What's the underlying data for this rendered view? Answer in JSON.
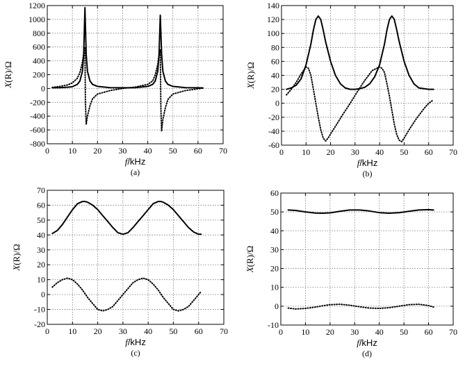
{
  "chart_data": [
    {
      "panel": "(a)",
      "type": "line",
      "xlabel_var": "f",
      "xlabel_unit": "/kHz",
      "ylabel_var": "X",
      "ylabel_unit": "(R)/Ω",
      "caption": "(a)",
      "xlim": [
        0,
        70
      ],
      "ylim": [
        -800,
        1200
      ],
      "xticks": [
        0,
        10,
        20,
        30,
        40,
        50,
        60,
        70
      ],
      "yticks": [
        -800,
        -600,
        -400,
        -200,
        0,
        200,
        400,
        600,
        800,
        1000,
        1200
      ],
      "grid": true,
      "series": [
        {
          "style": "solid",
          "x": [
            2,
            5,
            8,
            10,
            12,
            13,
            14,
            14.5,
            15,
            15.5,
            16,
            17,
            18,
            20,
            25,
            30,
            35,
            40,
            42,
            43,
            44,
            44.5,
            45,
            45.5,
            46,
            47,
            48,
            50,
            55,
            60,
            62
          ],
          "y": [
            10,
            12,
            18,
            25,
            60,
            110,
            250,
            500,
            1170,
            500,
            250,
            110,
            60,
            30,
            12,
            10,
            12,
            30,
            60,
            110,
            250,
            500,
            1060,
            500,
            250,
            110,
            60,
            30,
            12,
            10,
            8
          ]
        },
        {
          "style": "dotted",
          "x": [
            2,
            5,
            8,
            10,
            12,
            13,
            14,
            14.5,
            15,
            15.2,
            15.5,
            16,
            17,
            18,
            20,
            25,
            30,
            35,
            40,
            42,
            43,
            44,
            44.5,
            45,
            45.2,
            45.5,
            46,
            47,
            48,
            50,
            55,
            60,
            62
          ],
          "y": [
            15,
            30,
            50,
            80,
            150,
            230,
            380,
            500,
            600,
            -200,
            -520,
            -400,
            -250,
            -150,
            -80,
            -30,
            0,
            20,
            60,
            110,
            200,
            350,
            480,
            560,
            -250,
            -620,
            -450,
            -280,
            -160,
            -80,
            -30,
            -5,
            5
          ]
        }
      ]
    },
    {
      "panel": "(b)",
      "type": "line",
      "xlabel_var": "f",
      "xlabel_unit": "/kHz",
      "ylabel_var": "X",
      "ylabel_unit": "(R)/Ω",
      "caption": "(b)",
      "xlim": [
        0,
        70
      ],
      "ylim": [
        -60,
        140
      ],
      "xticks": [
        0,
        10,
        20,
        30,
        40,
        50,
        60,
        70
      ],
      "yticks": [
        -60,
        -40,
        -20,
        0,
        20,
        40,
        60,
        80,
        100,
        120,
        140
      ],
      "grid": true,
      "series": [
        {
          "style": "solid",
          "x": [
            2,
            4,
            6,
            8,
            10,
            12,
            13,
            14,
            15,
            16,
            17,
            18,
            20,
            22,
            24,
            26,
            28,
            30,
            32,
            34,
            36,
            38,
            40,
            42,
            43,
            44,
            45,
            46,
            47,
            48,
            50,
            52,
            54,
            56,
            58,
            60,
            62
          ],
          "y": [
            20,
            22,
            26,
            35,
            55,
            85,
            105,
            120,
            125,
            120,
            105,
            88,
            60,
            40,
            28,
            22,
            20,
            20,
            21,
            23,
            28,
            38,
            55,
            85,
            105,
            120,
            125,
            120,
            105,
            88,
            60,
            40,
            28,
            22,
            21,
            20,
            20
          ]
        },
        {
          "style": "dotted",
          "x": [
            2,
            4,
            6,
            8,
            10,
            11,
            12,
            13,
            14,
            15,
            16,
            17,
            18,
            19,
            20,
            22,
            25,
            28,
            31,
            34,
            37,
            40,
            41,
            42,
            43,
            44,
            45,
            46,
            47,
            48,
            49,
            50,
            52,
            55,
            58,
            60,
            62
          ],
          "y": [
            12,
            20,
            30,
            42,
            52,
            50,
            40,
            20,
            0,
            -20,
            -38,
            -50,
            -54,
            -50,
            -44,
            -33,
            -16,
            0,
            17,
            33,
            47,
            52,
            50,
            44,
            28,
            10,
            -10,
            -30,
            -45,
            -53,
            -55,
            -50,
            -38,
            -22,
            -8,
            0,
            5
          ]
        }
      ]
    },
    {
      "panel": "(c)",
      "type": "line",
      "xlabel_var": "f",
      "xlabel_unit": "/kHz",
      "ylabel_var": "X",
      "ylabel_unit": "(R)/Ω",
      "caption": "(c)",
      "xlim": [
        0,
        70
      ],
      "ylim": [
        -20,
        70
      ],
      "xticks": [
        0,
        10,
        20,
        30,
        40,
        50,
        60,
        70
      ],
      "yticks": [
        -20,
        -10,
        0,
        10,
        20,
        30,
        40,
        50,
        60,
        70
      ],
      "grid": true,
      "series": [
        {
          "style": "solid",
          "x": [
            2,
            4,
            6,
            8,
            10,
            12,
            14,
            15,
            16,
            18,
            20,
            22,
            24,
            26,
            28,
            30,
            32,
            34,
            36,
            38,
            40,
            42,
            44,
            45,
            46,
            48,
            50,
            52,
            54,
            56,
            58,
            60,
            61
          ],
          "y": [
            41,
            43,
            47,
            52,
            57,
            61,
            62.5,
            62.5,
            62,
            60,
            57,
            53,
            49,
            45,
            41.5,
            40.5,
            41.5,
            45,
            49,
            53,
            57,
            61,
            62.5,
            62.5,
            62,
            60,
            57,
            53,
            49,
            45,
            42,
            40.5,
            40.5
          ]
        },
        {
          "style": "dotted",
          "x": [
            2,
            4,
            6,
            8,
            10,
            12,
            14,
            16,
            18,
            20,
            22,
            24,
            26,
            28,
            30,
            32,
            34,
            36,
            38,
            40,
            42,
            44,
            46,
            48,
            50,
            52,
            54,
            56,
            58,
            60,
            61
          ],
          "y": [
            5,
            8,
            10,
            11,
            10,
            7,
            3,
            -2,
            -6,
            -10,
            -11,
            -10,
            -8,
            -4,
            0,
            4,
            8,
            10,
            11,
            10,
            7,
            3,
            -2,
            -6,
            -10,
            -11,
            -10,
            -8,
            -4,
            0,
            2
          ]
        }
      ]
    },
    {
      "panel": "(d)",
      "type": "line",
      "xlabel_var": "f",
      "xlabel_unit": "/kHz",
      "ylabel_var": "X",
      "ylabel_unit": "(R)/Ω",
      "caption": "(d)",
      "xlim": [
        0,
        70
      ],
      "ylim": [
        -10,
        60
      ],
      "xticks": [
        0,
        10,
        20,
        30,
        40,
        50,
        60,
        70
      ],
      "yticks": [
        -10,
        0,
        10,
        20,
        30,
        40,
        50,
        60
      ],
      "grid": true,
      "series": [
        {
          "style": "solid",
          "x": [
            3,
            6,
            10,
            14,
            17,
            20,
            24,
            28,
            32,
            36,
            40,
            44,
            48,
            52,
            56,
            60,
            62
          ],
          "y": [
            51,
            50.8,
            50,
            49.4,
            49.3,
            49.5,
            50.3,
            51,
            51,
            50.5,
            49.6,
            49.3,
            49.6,
            50.3,
            51,
            51.2,
            51
          ]
        },
        {
          "style": "dotted",
          "x": [
            3,
            6,
            10,
            14,
            17,
            20,
            24,
            28,
            32,
            36,
            40,
            44,
            48,
            52,
            56,
            60,
            62
          ],
          "y": [
            -1,
            -1.5,
            -1.2,
            -0.5,
            0.2,
            0.8,
            1,
            0.5,
            -0.3,
            -1,
            -1.2,
            -0.8,
            0,
            0.8,
            1,
            0.3,
            -0.5
          ]
        }
      ]
    }
  ]
}
